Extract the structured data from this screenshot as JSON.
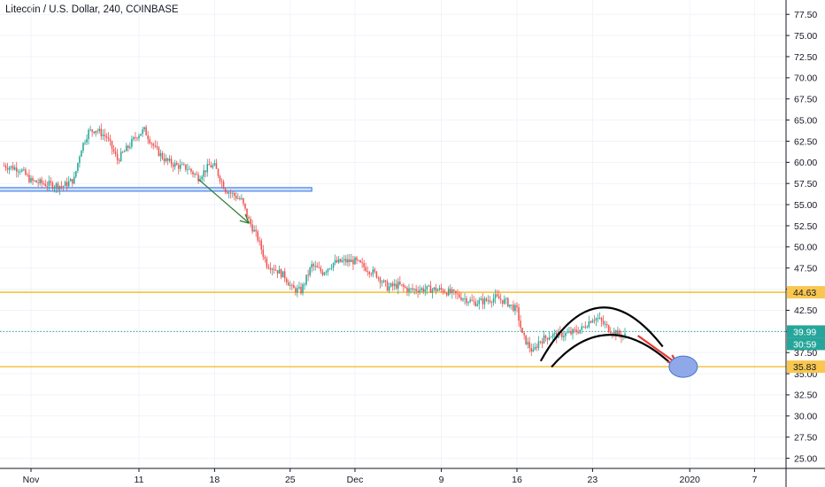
{
  "header": {
    "title": "Litecoin / U.S. Dollar, 240, COINBASE"
  },
  "colors": {
    "up": "#26a69a",
    "down": "#ef5350",
    "level": "#f5c342",
    "level_badge": "#f9c74f",
    "zone": "#4a86e8",
    "current_price": "#26a69a",
    "arrow_green": "#2e7d32",
    "arrow_red": "#e53935",
    "arc": "#000000",
    "target": "#6f8fdc"
  },
  "chart_data": {
    "type": "candlestick",
    "title": "Litecoin / U.S. Dollar, 240, COINBASE",
    "ylim": [
      23.8,
      79.2
    ],
    "y_ticks": [
      "25.00",
      "27.50",
      "30.00",
      "32.50",
      "35.00",
      "37.50",
      "40.00",
      "42.50",
      "45.00",
      "47.50",
      "50.00",
      "52.50",
      "55.00",
      "57.50",
      "60.00",
      "62.50",
      "65.00",
      "67.50",
      "70.00",
      "72.50",
      "75.00",
      "77.50"
    ],
    "x_ticks": [
      {
        "label": "Nov",
        "day": 1
      },
      {
        "label": "11",
        "day": 11
      },
      {
        "label": "18",
        "day": 18
      },
      {
        "label": "25",
        "day": 25
      },
      {
        "label": "Dec",
        "day": 31
      },
      {
        "label": "9",
        "day": 39
      },
      {
        "label": "16",
        "day": 46
      },
      {
        "label": "23",
        "day": 53
      },
      {
        "label": "2020",
        "day": 62
      },
      {
        "label": "7",
        "day": 68
      }
    ],
    "price_path": [
      [
        -1.5,
        59.6
      ],
      [
        0,
        59.2
      ],
      [
        1,
        57.8
      ],
      [
        2.5,
        57.4
      ],
      [
        4,
        57.2
      ],
      [
        5,
        58.0
      ],
      [
        5.6,
        61.5
      ],
      [
        6.3,
        63.6
      ],
      [
        7,
        63.9
      ],
      [
        8,
        63.0
      ],
      [
        9,
        60.3
      ],
      [
        10,
        61.8
      ],
      [
        10.8,
        63.2
      ],
      [
        11.5,
        63.8
      ],
      [
        12.5,
        61.6
      ],
      [
        13.5,
        60.2
      ],
      [
        14.5,
        59.6
      ],
      [
        15.5,
        59.3
      ],
      [
        16.5,
        58.2
      ],
      [
        17.5,
        59.6
      ],
      [
        18,
        59.5
      ],
      [
        19,
        56.8
      ],
      [
        20.5,
        55.5
      ],
      [
        21.2,
        53.0
      ],
      [
        22,
        51.0
      ],
      [
        22.8,
        48.0
      ],
      [
        23.5,
        47.5
      ],
      [
        24.5,
        46.5
      ],
      [
        25.2,
        45.0
      ],
      [
        26,
        44.8
      ],
      [
        27,
        47.8
      ],
      [
        28,
        47.0
      ],
      [
        29,
        48.1
      ],
      [
        30,
        48.3
      ],
      [
        31,
        48.3
      ],
      [
        32,
        47.5
      ],
      [
        33,
        46.7
      ],
      [
        34,
        45.2
      ],
      [
        35,
        45.5
      ],
      [
        36,
        44.9
      ],
      [
        37,
        45.0
      ],
      [
        38,
        45.0
      ],
      [
        39,
        44.9
      ],
      [
        40,
        44.5
      ],
      [
        41,
        44.0
      ],
      [
        42,
        43.4
      ],
      [
        43,
        43.6
      ],
      [
        44,
        44.0
      ],
      [
        45,
        43.5
      ],
      [
        46,
        42.5
      ],
      [
        46.5,
        39.5
      ],
      [
        47.5,
        37.5
      ],
      [
        48,
        38.8
      ],
      [
        49,
        39.5
      ],
      [
        50,
        39.6
      ],
      [
        51,
        39.8
      ],
      [
        52,
        40.3
      ],
      [
        53,
        41.6
      ],
      [
        53.5,
        41.5
      ],
      [
        54.5,
        40.3
      ],
      [
        55.5,
        39.6
      ],
      [
        56,
        39.5
      ]
    ],
    "horizontal_levels": [
      {
        "label": "44.63",
        "value": 44.63
      },
      {
        "label": "35.83",
        "value": 35.83
      }
    ],
    "current_price": {
      "label": "39.99",
      "value": 39.99,
      "timer": "30:59"
    },
    "zone": {
      "from_day": -2,
      "to_day": 27,
      "value": 56.8
    },
    "annotations": [
      {
        "type": "arrow",
        "color": "green",
        "from": [
          16.5,
          58.0
        ],
        "to": [
          21.2,
          52.8
        ]
      },
      {
        "type": "arc",
        "from": [
          48.2,
          36.5
        ],
        "peak": [
          53.6,
          42.8
        ],
        "to": [
          59.5,
          38.2
        ]
      },
      {
        "type": "arc",
        "from": [
          49.2,
          35.8
        ],
        "peak": [
          54.6,
          39.6
        ],
        "to": [
          60.5,
          35.9
        ]
      },
      {
        "type": "arrow",
        "color": "red",
        "from": [
          57.2,
          39.5
        ],
        "to": [
          60.8,
          36.2
        ]
      },
      {
        "type": "ellipse",
        "center": [
          61.4,
          35.83
        ]
      }
    ]
  }
}
